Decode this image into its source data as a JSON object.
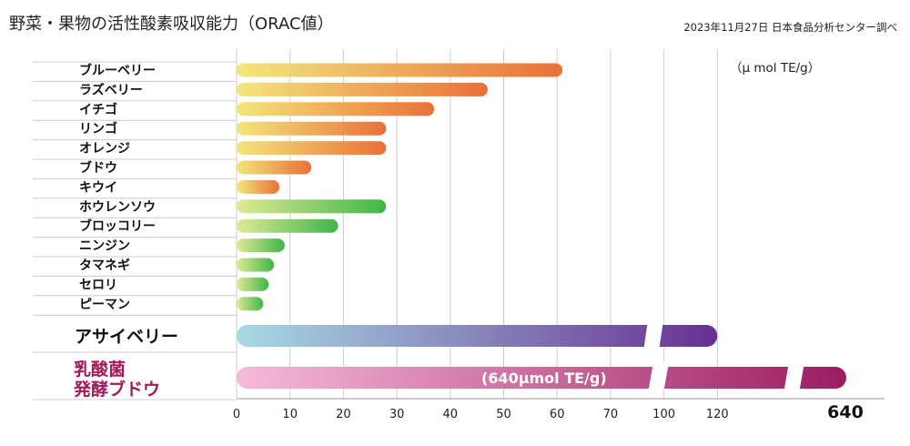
{
  "title": "野菜・果物の活性酸素吸収能力（ORAC値）",
  "source": "2023年11月27日 日本食品分析センター調べ",
  "unit_label": "（μ mol TE/g）",
  "highlight_label": "(640μmol  TE/g)",
  "colors": {
    "fruit_start": "#f3e67a",
    "fruit_end": "#ea7038",
    "veg_start": "#dfe995",
    "veg_end": "#3fb549",
    "acai_start": "#a7dae4",
    "acai_end": "#673092",
    "probiotic_start": "#f6bad9",
    "probiotic_end": "#9b1c61",
    "probiotic_label": "#a3195b",
    "grid": "#cccccc",
    "axis": "#999999"
  },
  "chart_data": {
    "type": "bar",
    "orientation": "horizontal",
    "x_tick_labels": [
      "0",
      "10",
      "20",
      "30",
      "40",
      "50",
      "60",
      "70",
      "100",
      "120"
    ],
    "axis_break": true,
    "categories": [
      "ブルーベリー",
      "ラズベリー",
      "イチゴ",
      "リンゴ",
      "オレンジ",
      "ブドウ",
      "キウイ",
      "ホウレンソウ",
      "ブロッコリー",
      "ニンジン",
      "タマネギ",
      "セロリ",
      "ピーマン",
      "アサイベリー",
      "乳酸菌 発酵ブドウ"
    ],
    "values": [
      61,
      47,
      37,
      28,
      28,
      14,
      8,
      28,
      19,
      9,
      7,
      6,
      5,
      120,
      640
    ],
    "groups": [
      "fruit",
      "fruit",
      "fruit",
      "fruit",
      "fruit",
      "fruit",
      "fruit",
      "veg",
      "veg",
      "veg",
      "veg",
      "veg",
      "veg",
      "acai",
      "probiotic"
    ],
    "probiotic_value_label": "640",
    "grid": true
  }
}
